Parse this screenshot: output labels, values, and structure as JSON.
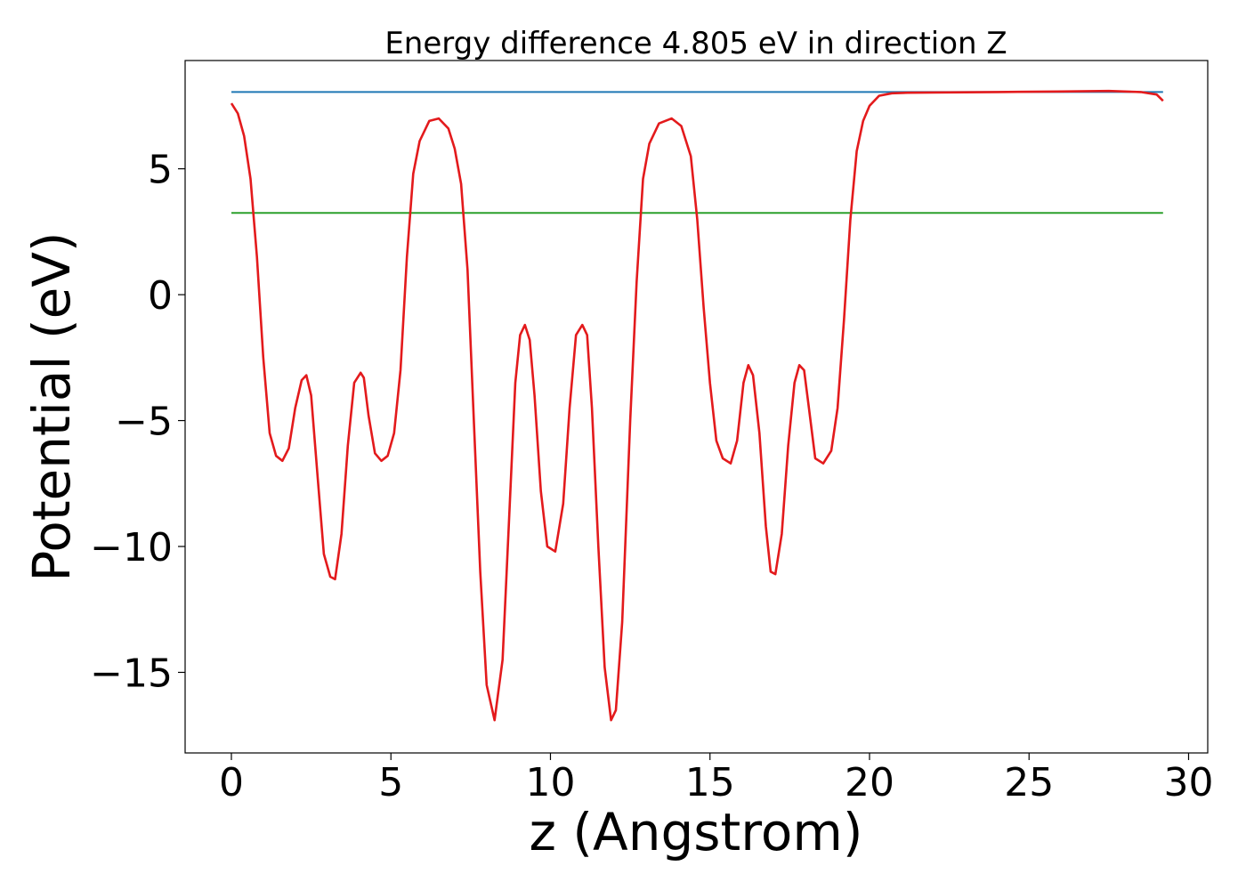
{
  "chart_data": {
    "type": "line",
    "title": "Energy difference 4.805 eV in direction Z",
    "xlabel": "z (Angstrom)",
    "ylabel": "Potential (eV)",
    "xlim": [
      -1.45,
      30.6
    ],
    "ylim": [
      -18.2,
      9.3
    ],
    "xticks": [
      {
        "value": 0,
        "label": "0"
      },
      {
        "value": 5,
        "label": "5"
      },
      {
        "value": 10,
        "label": "10"
      },
      {
        "value": 15,
        "label": "15"
      },
      {
        "value": 20,
        "label": "20"
      },
      {
        "value": 25,
        "label": "25"
      },
      {
        "value": 30,
        "label": "30"
      }
    ],
    "yticks": [
      {
        "value": 5,
        "label": "5"
      },
      {
        "value": 0,
        "label": "0"
      },
      {
        "value": -5,
        "label": "−5"
      },
      {
        "value": -10,
        "label": "−10"
      },
      {
        "value": -15,
        "label": "−15"
      }
    ],
    "grid": false,
    "series": [
      {
        "color": "#1f77b4",
        "x": [
          0,
          29.2
        ],
        "y": [
          8.05,
          8.05
        ]
      },
      {
        "color": "#2ca02c",
        "x": [
          0,
          29.2
        ],
        "y": [
          3.25,
          3.25
        ]
      },
      {
        "color": "#e31a1c",
        "x": [
          0.0,
          0.2,
          0.4,
          0.6,
          0.8,
          1.0,
          1.2,
          1.4,
          1.6,
          1.8,
          2.0,
          2.2,
          2.35,
          2.5,
          2.7,
          2.9,
          3.1,
          3.25,
          3.45,
          3.65,
          3.85,
          4.05,
          4.15,
          4.3,
          4.5,
          4.7,
          4.9,
          5.1,
          5.3,
          5.5,
          5.7,
          5.9,
          6.2,
          6.5,
          6.8,
          7.0,
          7.2,
          7.4,
          7.6,
          7.8,
          8.0,
          8.25,
          8.5,
          8.7,
          8.9,
          9.05,
          9.2,
          9.35,
          9.5,
          9.7,
          9.9,
          10.15,
          10.4,
          10.6,
          10.8,
          11.0,
          11.15,
          11.3,
          11.5,
          11.7,
          11.9,
          12.05,
          12.25,
          12.5,
          12.7,
          12.9,
          13.1,
          13.4,
          13.8,
          14.1,
          14.4,
          14.6,
          14.8,
          15.0,
          15.2,
          15.4,
          15.65,
          15.85,
          16.05,
          16.2,
          16.35,
          16.55,
          16.75,
          16.9,
          17.05,
          17.25,
          17.45,
          17.65,
          17.8,
          17.95,
          18.1,
          18.3,
          18.55,
          18.8,
          19.0,
          19.2,
          19.4,
          19.6,
          19.8,
          20.0,
          20.3,
          20.7,
          21.2,
          22.0,
          24.0,
          26.0,
          27.5,
          28.5,
          29.0,
          29.2
        ],
        "y": [
          7.6,
          7.2,
          6.3,
          4.6,
          1.5,
          -2.5,
          -5.5,
          -6.4,
          -6.6,
          -6.1,
          -4.5,
          -3.4,
          -3.2,
          -4.0,
          -7.2,
          -10.3,
          -11.2,
          -11.3,
          -9.5,
          -6.0,
          -3.5,
          -3.1,
          -3.3,
          -4.8,
          -6.3,
          -6.6,
          -6.4,
          -5.5,
          -3.0,
          1.5,
          4.8,
          6.1,
          6.9,
          7.0,
          6.6,
          5.8,
          4.4,
          1.0,
          -5.0,
          -11.0,
          -15.5,
          -16.9,
          -14.5,
          -9.0,
          -3.5,
          -1.6,
          -1.2,
          -1.8,
          -4.0,
          -7.8,
          -10.0,
          -10.2,
          -8.3,
          -4.5,
          -1.6,
          -1.2,
          -1.6,
          -4.5,
          -10.0,
          -14.8,
          -16.9,
          -16.5,
          -13.0,
          -5.0,
          0.5,
          4.6,
          6.0,
          6.8,
          7.0,
          6.7,
          5.5,
          3.0,
          -0.5,
          -3.5,
          -5.8,
          -6.5,
          -6.7,
          -5.8,
          -3.5,
          -2.8,
          -3.2,
          -5.5,
          -9.2,
          -11.0,
          -11.1,
          -9.5,
          -6.0,
          -3.5,
          -2.8,
          -3.0,
          -4.5,
          -6.5,
          -6.7,
          -6.2,
          -4.5,
          -1.0,
          3.0,
          5.7,
          6.9,
          7.5,
          7.9,
          8.0,
          8.02,
          8.03,
          8.05,
          8.07,
          8.09,
          8.05,
          7.95,
          7.7
        ]
      }
    ]
  }
}
